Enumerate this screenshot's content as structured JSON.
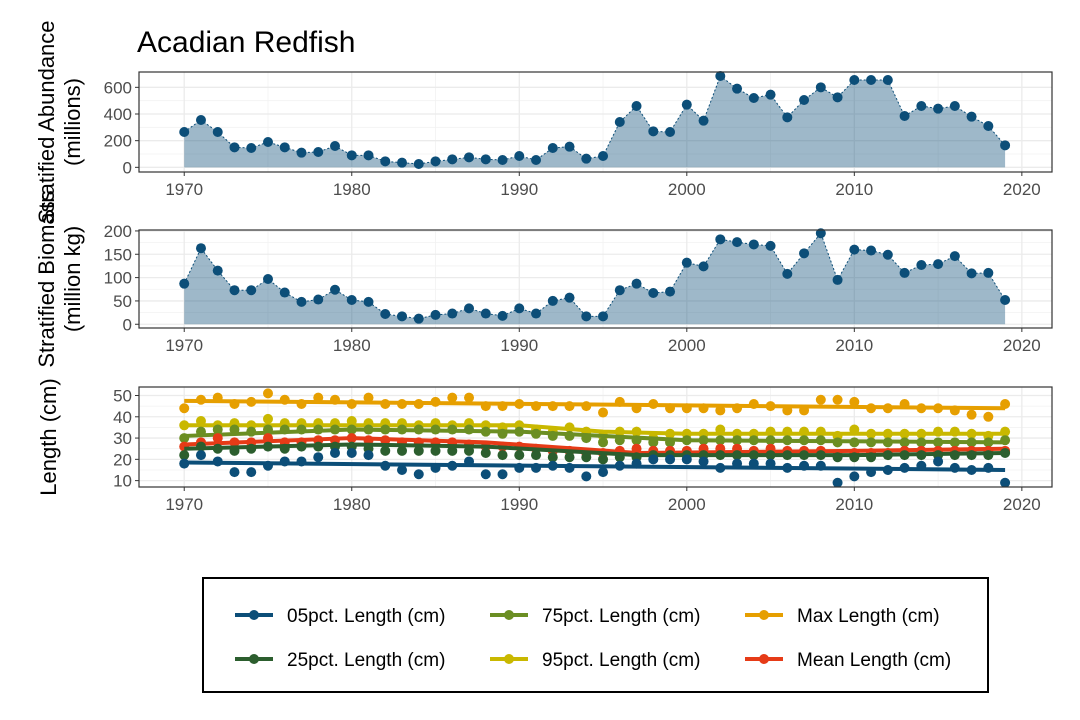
{
  "title": "Acadian Redfish",
  "chart_data": [
    {
      "type": "area",
      "ylabel": [
        "Stratified Abundance",
        "(millions)"
      ],
      "x_ticks": [
        1970,
        1980,
        1990,
        2000,
        2010,
        2020
      ],
      "y_ticks": [
        0,
        200,
        400,
        600
      ],
      "xlim": [
        1967.3,
        2021.8
      ],
      "ylim": [
        -35,
        715
      ],
      "years": [
        1970,
        1971,
        1972,
        1973,
        1974,
        1975,
        1976,
        1977,
        1978,
        1979,
        1980,
        1981,
        1982,
        1983,
        1984,
        1985,
        1986,
        1987,
        1988,
        1989,
        1990,
        1991,
        1992,
        1993,
        1994,
        1995,
        1996,
        1997,
        1998,
        1999,
        2000,
        2001,
        2002,
        2003,
        2004,
        2005,
        2006,
        2007,
        2008,
        2009,
        2010,
        2011,
        2012,
        2013,
        2014,
        2015,
        2016,
        2017,
        2018,
        2019
      ],
      "values": [
        265,
        355,
        265,
        150,
        145,
        190,
        150,
        110,
        115,
        160,
        90,
        90,
        45,
        35,
        25,
        45,
        60,
        75,
        60,
        55,
        85,
        55,
        145,
        155,
        65,
        85,
        340,
        460,
        270,
        265,
        470,
        350,
        685,
        590,
        520,
        545,
        375,
        505,
        600,
        525,
        655,
        655,
        655,
        385,
        460,
        440,
        460,
        380,
        310,
        165
      ]
    },
    {
      "type": "area",
      "ylabel": [
        "Stratified Biomass",
        "(million kg)"
      ],
      "x_ticks": [
        1970,
        1980,
        1990,
        2000,
        2010,
        2020
      ],
      "y_ticks": [
        0,
        50,
        100,
        150,
        200
      ],
      "xlim": [
        1967.3,
        2021.8
      ],
      "ylim": [
        -8,
        202
      ],
      "years": [
        1970,
        1971,
        1972,
        1973,
        1974,
        1975,
        1976,
        1977,
        1978,
        1979,
        1980,
        1981,
        1982,
        1983,
        1984,
        1985,
        1986,
        1987,
        1988,
        1989,
        1990,
        1991,
        1992,
        1993,
        1994,
        1995,
        1996,
        1997,
        1998,
        1999,
        2000,
        2001,
        2002,
        2003,
        2004,
        2005,
        2006,
        2007,
        2008,
        2009,
        2010,
        2011,
        2012,
        2013,
        2014,
        2015,
        2016,
        2017,
        2018,
        2019
      ],
      "values": [
        87,
        163,
        115,
        73,
        73,
        97,
        68,
        48,
        53,
        74,
        52,
        48,
        22,
        17,
        12,
        20,
        23,
        34,
        23,
        18,
        34,
        23,
        50,
        57,
        17,
        17,
        73,
        87,
        67,
        70,
        132,
        124,
        182,
        176,
        171,
        168,
        108,
        152,
        195,
        95,
        160,
        158,
        149,
        110,
        127,
        129,
        146,
        109,
        110,
        52
      ]
    },
    {
      "type": "scatter",
      "ylabel": [
        "Length (cm)"
      ],
      "x_ticks": [
        1970,
        1980,
        1990,
        2000,
        2010,
        2020
      ],
      "y_ticks": [
        10,
        20,
        30,
        40,
        50
      ],
      "xlim": [
        1967.3,
        2021.8
      ],
      "ylim": [
        7,
        54
      ],
      "years": [
        1970,
        1971,
        1972,
        1973,
        1974,
        1975,
        1976,
        1977,
        1978,
        1979,
        1980,
        1981,
        1982,
        1983,
        1984,
        1985,
        1986,
        1987,
        1988,
        1989,
        1990,
        1991,
        1992,
        1993,
        1994,
        1995,
        1996,
        1997,
        1998,
        1999,
        2000,
        2001,
        2002,
        2003,
        2004,
        2005,
        2006,
        2007,
        2008,
        2009,
        2010,
        2011,
        2012,
        2013,
        2014,
        2015,
        2016,
        2017,
        2018,
        2019
      ],
      "series": [
        {
          "name": "Max Length (cm)",
          "color": "#E69F00",
          "trend": [
            47.5,
            44
          ],
          "values": [
            44,
            48,
            49,
            46,
            47,
            51,
            48,
            46,
            49,
            48,
            46,
            49,
            46,
            46,
            46,
            47,
            49,
            49,
            45,
            45,
            46,
            45,
            45,
            45,
            45,
            42,
            47,
            44,
            46,
            44,
            44,
            44,
            43,
            44,
            46,
            45,
            43,
            43,
            48,
            48,
            47,
            44,
            44,
            46,
            44,
            44,
            43,
            41,
            40,
            46
          ]
        },
        {
          "name": "95pct. Length (cm)",
          "color": "#C9B800",
          "trend": [
            36,
            36,
            36,
            36,
            33,
            32,
            32
          ],
          "trend_years": [
            1970,
            1980,
            1985,
            1990,
            1995,
            2000,
            2019
          ],
          "values": [
            36,
            38,
            36,
            37,
            36,
            39,
            37,
            37,
            37,
            37,
            38,
            37,
            37,
            37,
            36,
            37,
            36,
            37,
            36,
            35,
            36,
            34,
            33,
            35,
            33,
            31,
            33,
            33,
            30,
            32,
            32,
            32,
            34,
            32,
            32,
            33,
            33,
            33,
            33,
            31,
            34,
            32,
            32,
            32,
            32,
            33,
            33,
            32,
            31,
            33
          ]
        },
        {
          "name": "75pct. Length (cm)",
          "color": "#6B8E23",
          "trend": [
            31,
            34,
            33,
            29,
            28
          ],
          "trend_years": [
            1970,
            1980,
            1990,
            2000,
            2019
          ],
          "values": [
            30,
            33,
            34,
            34,
            33,
            34,
            34,
            34,
            34,
            34,
            34,
            34,
            34,
            34,
            34,
            34,
            34,
            34,
            33,
            32,
            33,
            32,
            31,
            31,
            30,
            28,
            29,
            29,
            28,
            28,
            29,
            29,
            29,
            29,
            29,
            29,
            29,
            29,
            29,
            28,
            28,
            28,
            28,
            28,
            28,
            28,
            28,
            28,
            28,
            29
          ]
        },
        {
          "name": "Mean Length (cm)",
          "color": "#E63B17",
          "trend": [
            27,
            30,
            28,
            23,
            24,
            25
          ],
          "trend_years": [
            1970,
            1980,
            1988,
            1997,
            2010,
            2019
          ],
          "values": [
            26,
            28,
            30,
            28,
            28,
            30,
            28,
            28,
            29,
            29,
            30,
            29,
            29,
            28,
            28,
            28,
            28,
            27,
            26,
            26,
            26,
            25,
            24,
            24,
            23,
            23,
            24,
            25,
            24,
            24,
            24,
            25,
            25,
            25,
            24,
            25,
            24,
            24,
            24,
            22,
            23,
            23,
            23,
            24,
            24,
            24,
            24,
            24,
            24,
            24
          ]
        },
        {
          "name": "25pct. Length (cm)",
          "color": "#2C5E2E",
          "trend": [
            25,
            27,
            26,
            22,
            22,
            23
          ],
          "trend_years": [
            1970,
            1980,
            1988,
            1997,
            2010,
            2019
          ],
          "values": [
            22,
            26,
            25,
            24,
            25,
            26,
            25,
            26,
            26,
            26,
            26,
            25,
            24,
            24,
            24,
            24,
            24,
            24,
            23,
            22,
            22,
            22,
            21,
            21,
            21,
            20,
            21,
            21,
            22,
            22,
            22,
            22,
            22,
            22,
            22,
            22,
            22,
            22,
            22,
            21,
            21,
            21,
            22,
            22,
            22,
            22,
            22,
            22,
            22,
            23
          ]
        },
        {
          "name": "05pct. Length (cm)",
          "color": "#0C4E78",
          "trend": [
            18.5,
            15
          ],
          "values": [
            18,
            22,
            19,
            14,
            14,
            17,
            19,
            19,
            21,
            23,
            23,
            22,
            17,
            15,
            13,
            16,
            17,
            19,
            13,
            13,
            16,
            16,
            17,
            16,
            12,
            14,
            17,
            18,
            20,
            20,
            20,
            19,
            16,
            18,
            18,
            18,
            16,
            17,
            17,
            9,
            12,
            14,
            15,
            16,
            17,
            19,
            16,
            15,
            16,
            9
          ]
        }
      ]
    }
  ],
  "legend": {
    "rows": [
      [
        "05pct. Length (cm)",
        "75pct. Length (cm)",
        "Max Length (cm)"
      ],
      [
        "25pct. Length (cm)",
        "95pct. Length (cm)",
        "Mean Length (cm)"
      ]
    ]
  }
}
